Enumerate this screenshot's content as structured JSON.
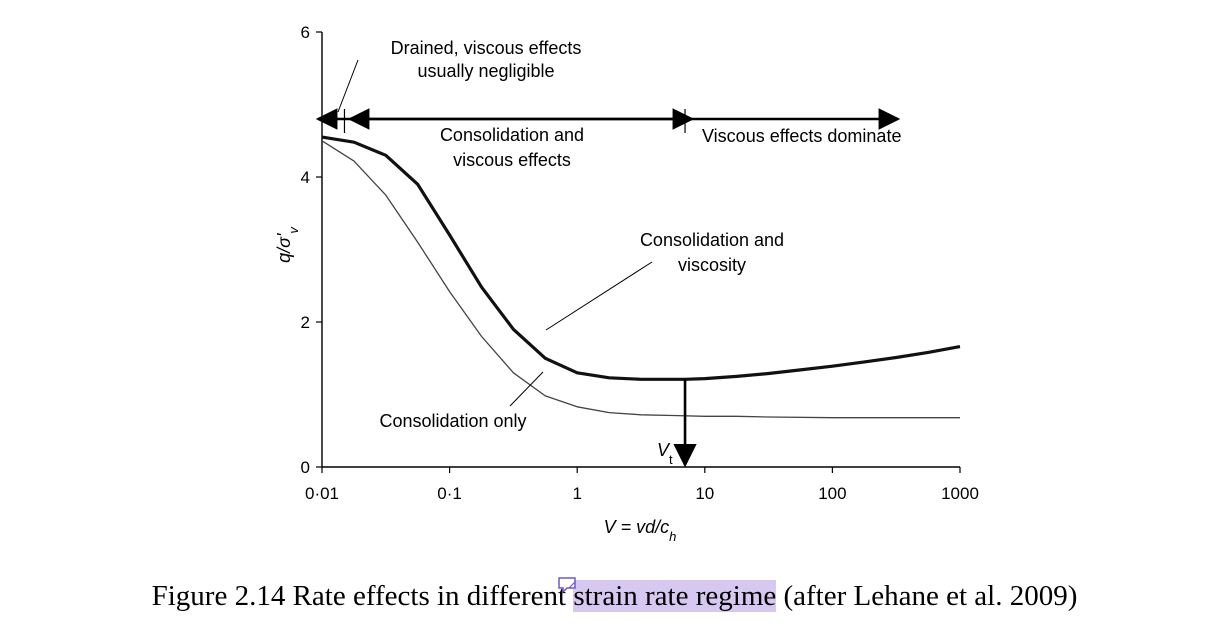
{
  "chart_data": {
    "type": "line",
    "x_scale": "log",
    "xlim": [
      0.01,
      1000
    ],
    "ylim": [
      0,
      6
    ],
    "xticks": [
      "0·01",
      "0·1",
      "1",
      "10",
      "100",
      "1000"
    ],
    "yticks": [
      "0",
      "2",
      "4",
      "6"
    ],
    "xlabel": "V = vd/c",
    "xlabel_sub": "h",
    "ylabel": "q/σ'",
    "ylabel_sub": "v",
    "grid": false,
    "series": [
      {
        "name": "Consolidation and viscosity",
        "style": "thick",
        "x": [
          0.01,
          0.0178,
          0.0316,
          0.0562,
          0.1,
          0.178,
          0.316,
          0.562,
          1,
          1.78,
          3.16,
          5.62,
          7,
          10,
          17.8,
          31.6,
          56.2,
          100,
          178,
          316,
          562,
          1000
        ],
        "y": [
          4.55,
          4.48,
          4.3,
          3.9,
          3.2,
          2.48,
          1.9,
          1.5,
          1.3,
          1.23,
          1.21,
          1.21,
          1.21,
          1.22,
          1.25,
          1.29,
          1.34,
          1.39,
          1.45,
          1.51,
          1.58,
          1.66
        ]
      },
      {
        "name": "Consolidation only",
        "style": "thin",
        "x": [
          0.01,
          0.0178,
          0.0316,
          0.0562,
          0.1,
          0.178,
          0.316,
          0.562,
          1,
          1.78,
          3.16,
          5.62,
          10,
          17.8,
          31.6,
          100,
          316,
          1000
        ],
        "y": [
          4.5,
          4.22,
          3.75,
          3.1,
          2.42,
          1.8,
          1.3,
          0.98,
          0.83,
          0.75,
          0.72,
          0.71,
          0.7,
          0.7,
          0.69,
          0.68,
          0.68,
          0.68
        ]
      }
    ],
    "regime_arrow_y": 4.8,
    "regime_divisions_x": [
      0.015,
      7
    ],
    "vt_x": 7,
    "annotations": {
      "drained": [
        "Drained, viscous effects",
        "usually negligible"
      ],
      "consolidation_viscous": [
        "Consolidation and",
        "viscous effects"
      ],
      "viscous_dominate": "Viscous effects dominate",
      "cons_viscosity": [
        "Consolidation and",
        "viscosity"
      ],
      "cons_only": "Consolidation only",
      "vt": "V",
      "vt_sub": "t"
    }
  },
  "caption": {
    "before": "Figure 2.14 Rate effects in different ",
    "highlight": "strain rate regime",
    "after": " (after Lehane et al. 2009)"
  },
  "colors": {
    "axis": "#000000",
    "thick_curve": "#111111",
    "thin_curve": "#444444",
    "highlight": "#d6c8f0",
    "comment_icon": "#6a5acd"
  },
  "icons": {
    "comment": "comment-marker-icon"
  }
}
